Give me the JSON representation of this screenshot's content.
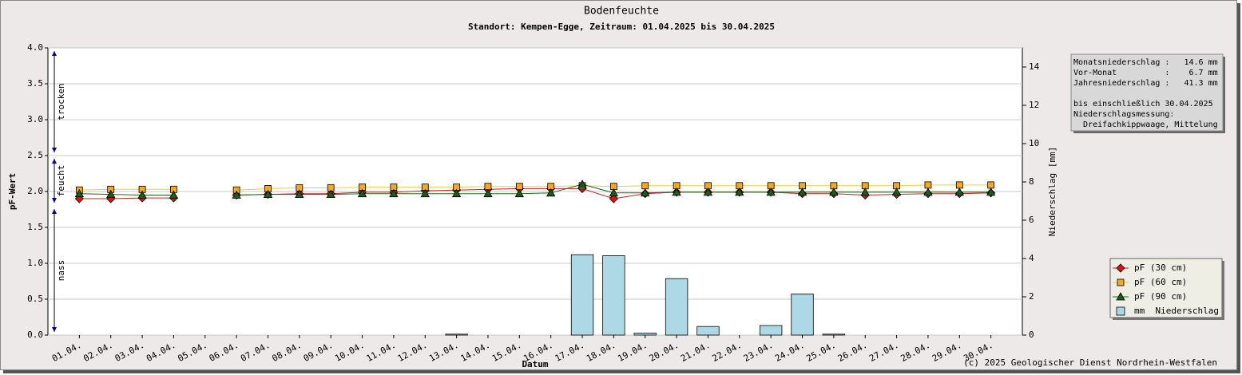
{
  "chart_data": {
    "type": "line",
    "title": "Bodenfeuchte",
    "subtitle": "Standort: Kempen-Egge, Zeitraum: 01.04.2025 bis 30.04.2025",
    "x_label": "Datum",
    "y_label": "pF-Wert",
    "y2_label": "Niederschlag [mm]",
    "copyright": "(c) 2025 Geologischer Dienst Nordrhein-Westfalen",
    "categories": [
      "01.04.",
      "02.04.",
      "03.04.",
      "04.04.",
      "05.04.",
      "06.04.",
      "07.04.",
      "08.04.",
      "09.04.",
      "10.04.",
      "11.04.",
      "12.04.",
      "13.04.",
      "14.04.",
      "15.04.",
      "16.04.",
      "17.04.",
      "18.04.",
      "19.04.",
      "20.04.",
      "21.04.",
      "22.04.",
      "23.04.",
      "24.04.",
      "25.04.",
      "26.04.",
      "27.04.",
      "28.04.",
      "29.04.",
      "30.04."
    ],
    "ylim": [
      0,
      4
    ],
    "yticks": [
      {
        "value": 0,
        "label": "0.0"
      },
      0.5,
      {
        "value": 1,
        "label": "1.0"
      },
      1.5,
      {
        "value": 2,
        "label": "2.0"
      },
      2.5,
      {
        "value": 3,
        "label": "3.0"
      },
      3.5,
      {
        "value": 4,
        "label": "4.0"
      }
    ],
    "y2lim": [
      0,
      15
    ],
    "y2ticks": [
      0,
      2,
      4,
      6,
      8,
      10,
      12,
      14
    ],
    "grid": true,
    "legend": "lower right",
    "zones": [
      {
        "label": "trocken",
        "from": 2.5,
        "to": 4.0
      },
      {
        "label": "feucht",
        "from": 1.8,
        "to": 2.5
      },
      {
        "label": "nass",
        "from": 0,
        "to": 1.8
      }
    ],
    "series": [
      {
        "name": "pF (30 cm)",
        "color": "#e01010",
        "line_color": "#d02020",
        "marker": "diamond",
        "values": [
          1.9,
          1.9,
          1.91,
          1.91,
          null,
          1.95,
          1.96,
          1.97,
          1.97,
          1.99,
          1.99,
          2.01,
          2.02,
          2.03,
          2.04,
          2.04,
          2.04,
          1.9,
          1.97,
          1.99,
          1.99,
          1.99,
          1.99,
          1.97,
          1.97,
          1.95,
          1.96,
          1.97,
          1.97,
          1.98
        ]
      },
      {
        "name": "pF (60 cm)",
        "color": "#f5a623",
        "line_color": "#e8d040",
        "marker": "square",
        "values": [
          2.02,
          2.03,
          2.03,
          2.03,
          null,
          2.02,
          2.04,
          2.05,
          2.05,
          2.06,
          2.06,
          2.06,
          2.06,
          2.07,
          2.07,
          2.07,
          2.08,
          2.07,
          2.08,
          2.08,
          2.08,
          2.08,
          2.08,
          2.08,
          2.08,
          2.08,
          2.08,
          2.09,
          2.09,
          2.09
        ]
      },
      {
        "name": "pF (90 cm)",
        "color": "#1a5c1a",
        "line_color": "#1a6a1a",
        "marker": "triangle",
        "values": [
          1.97,
          1.96,
          1.95,
          1.95,
          null,
          1.95,
          1.96,
          1.96,
          1.96,
          1.97,
          1.97,
          1.97,
          1.97,
          1.97,
          1.97,
          1.98,
          2.1,
          1.98,
          1.98,
          1.99,
          1.99,
          1.99,
          1.99,
          1.99,
          1.99,
          1.99,
          1.99,
          1.99,
          1.99,
          1.99
        ]
      },
      {
        "name": "mm  Niederschlag",
        "color": "#add8e6",
        "type": "bar",
        "axis": "y2",
        "values": [
          0,
          0,
          0,
          0,
          0,
          0,
          0,
          0,
          0,
          0,
          0,
          0,
          0.05,
          0,
          0,
          0,
          4.2,
          4.15,
          0.1,
          2.95,
          0.45,
          0,
          0.5,
          2.15,
          0.05,
          0,
          0,
          0,
          0,
          0
        ]
      }
    ],
    "info_box": {
      "totals": [
        "Monatsniederschlag :   14.6 mm",
        "Vor-Monat          :    6.7 mm",
        "Jahresniederschlag :   41.3 mm"
      ],
      "note": [
        "bis einschließlich 30.04.2025",
        "Niederschlagsmessung:",
        "  Dreifachkippwaage, Mittelung"
      ]
    }
  }
}
